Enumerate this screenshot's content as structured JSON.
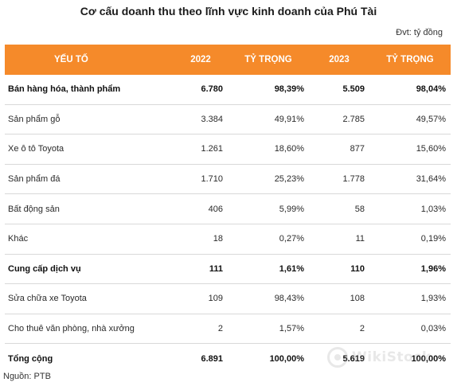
{
  "title": "Cơ cấu doanh thu theo lĩnh vực kinh doanh của Phú Tài",
  "unit": "Đvt: tỷ đồng",
  "table": {
    "headers": [
      "YẾU TỐ",
      "2022",
      "TỶ TRỌNG",
      "2023",
      "TỶ TRỌNG"
    ],
    "rows": [
      [
        "Bán hàng hóa, thành phẩm",
        "6.780",
        "98,39%",
        "5.509",
        "98,04%"
      ],
      [
        "Sản phẩm gỗ",
        "3.384",
        "49,91%",
        "2.785",
        "49,57%"
      ],
      [
        "Xe ô tô Toyota",
        "1.261",
        "18,60%",
        "877",
        "15,60%"
      ],
      [
        "Sản phẩm đá",
        "1.710",
        "25,23%",
        "1.778",
        "31,64%"
      ],
      [
        "Bất động sản",
        "406",
        "5,99%",
        "58",
        "1,03%"
      ],
      [
        "Khác",
        "18",
        "0,27%",
        "11",
        "0,19%"
      ],
      [
        "Cung cấp dịch vụ",
        "111",
        "1,61%",
        "110",
        "1,96%"
      ],
      [
        "Sửa chữa xe Toyota",
        "109",
        "98,43%",
        "108",
        "1,93%"
      ],
      [
        "Cho thuê văn phòng, nhà xưởng",
        "2",
        "1,57%",
        "2",
        "0,03%"
      ],
      [
        "Tổng cộng",
        "6.891",
        "100,00%",
        "5.619",
        "100,00%"
      ]
    ]
  },
  "source": "Nguồn: PTB",
  "watermark": {
    "text": "WikiStock",
    "icon": "wikistock-logo-icon"
  },
  "colors": {
    "header_bg": "#f58a2a",
    "header_text": "#ffffff",
    "row_border": "#d9d9d9"
  }
}
